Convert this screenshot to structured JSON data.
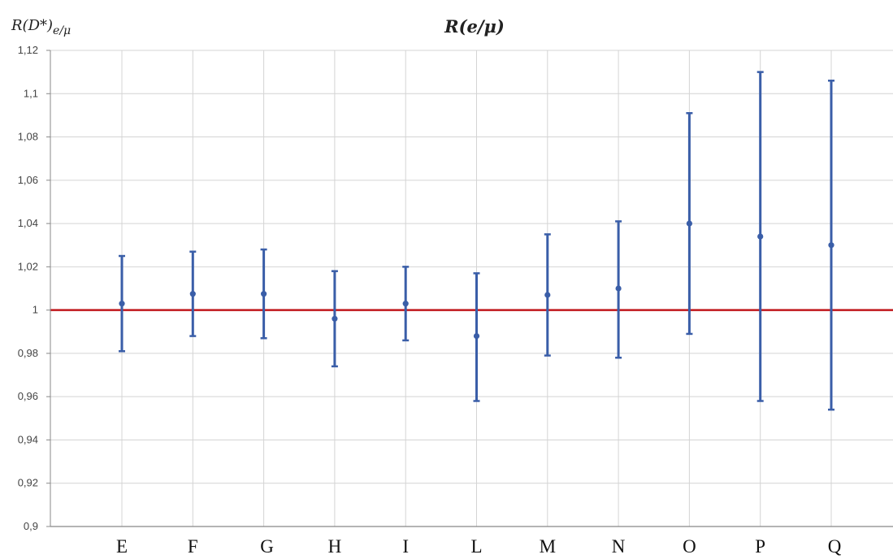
{
  "chart_data": {
    "type": "scatter",
    "title": "R(e/μ)",
    "ylabel": "R(D*)",
    "ylabel_sub": "e/μ",
    "categories": [
      "E",
      "F",
      "G",
      "H",
      "I",
      "L",
      "M",
      "N",
      "O",
      "P",
      "Q"
    ],
    "series": [
      {
        "values": [
          1.003,
          1.0075,
          1.0075,
          0.996,
          1.003,
          0.988,
          1.007,
          1.01,
          1.04,
          1.034,
          1.03
        ],
        "err_high": [
          1.025,
          1.027,
          1.028,
          1.018,
          1.02,
          1.017,
          1.035,
          1.041,
          1.091,
          1.11,
          1.106
        ],
        "err_low": [
          0.981,
          0.988,
          0.987,
          0.974,
          0.986,
          0.958,
          0.979,
          0.978,
          0.989,
          0.958,
          0.954
        ],
        "color": "#3a5ea8"
      }
    ],
    "reference_line": {
      "value": 1.0,
      "color": "#c0171b"
    },
    "ylim": [
      0.9,
      1.12
    ],
    "yticks": [
      "0,9",
      "0,92",
      "0,94",
      "0,96",
      "0,98",
      "1",
      "1,02",
      "1,04",
      "1,06",
      "1,08",
      "1,1",
      "1,12"
    ],
    "grid": true,
    "legend": "none"
  }
}
